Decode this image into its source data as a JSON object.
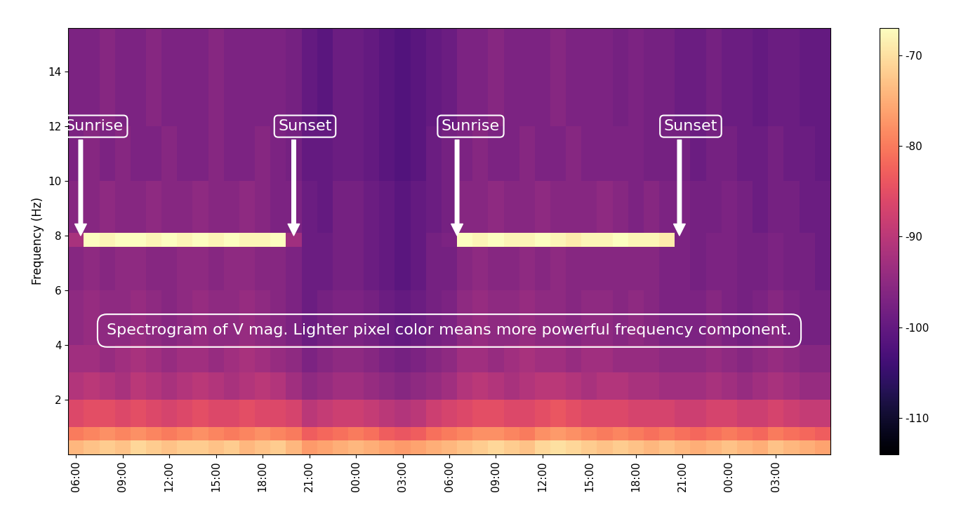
{
  "chart_data": {
    "type": "heatmap",
    "color": "magma",
    "y_label": "Frequency (Hz)",
    "xlim": [
      -0.5,
      48.5
    ],
    "ylim": [
      0,
      15.6
    ],
    "xticks": [
      {
        "value": 0,
        "label": "06:00"
      },
      {
        "value": 3,
        "label": "09:00"
      },
      {
        "value": 6,
        "label": "12:00"
      },
      {
        "value": 9,
        "label": "15:00"
      },
      {
        "value": 12,
        "label": "18:00"
      },
      {
        "value": 15,
        "label": "21:00"
      },
      {
        "value": 18,
        "label": "00:00"
      },
      {
        "value": 21,
        "label": "03:00"
      },
      {
        "value": 24,
        "label": "06:00"
      },
      {
        "value": 27,
        "label": "09:00"
      },
      {
        "value": 30,
        "label": "12:00"
      },
      {
        "value": 33,
        "label": "15:00"
      },
      {
        "value": 36,
        "label": "18:00"
      },
      {
        "value": 39,
        "label": "21:00"
      },
      {
        "value": 42,
        "label": "00:00"
      },
      {
        "value": 45,
        "label": "03:00"
      }
    ],
    "yticks": [
      2,
      4,
      6,
      8,
      10,
      12,
      14
    ],
    "x_edges": [
      -0.5,
      0.5,
      1.5,
      2.5,
      3.5,
      4.5,
      5.5,
      6.5,
      7.5,
      8.5,
      9.5,
      10.5,
      11.5,
      12.5,
      13.5,
      14.5,
      15.5,
      16.5,
      17.5,
      18.5,
      19.5,
      20.5,
      21.5,
      22.5,
      23.5,
      24.5,
      25.5,
      26.5,
      27.5,
      28.5,
      29.5,
      30.5,
      31.5,
      32.5,
      33.5,
      34.5,
      35.5,
      36.5,
      37.5,
      38.5,
      39.5,
      40.5,
      41.5,
      42.5,
      43.5,
      44.5,
      45.5,
      46.5,
      47.5,
      48.5
    ],
    "y_edges": [
      0,
      0.5,
      1,
      2,
      3,
      4,
      6,
      7.6,
      8.1,
      10,
      12,
      15.6
    ],
    "cells": [
      [
        -74,
        -73,
        -72,
        -73,
        -71,
        -72,
        -73,
        -72,
        -72,
        -73,
        -72,
        -74,
        -73,
        -72,
        -74,
        -77,
        -76,
        -75,
        -74,
        -75,
        -76,
        -77,
        -76,
        -75,
        -74,
        -73,
        -72,
        -71,
        -72,
        -73,
        -71,
        -70,
        -71,
        -72,
        -73,
        -72,
        -73,
        -74,
        -73,
        -74,
        -75,
        -74,
        -73,
        -74,
        -75,
        -73,
        -74,
        -75,
        -76
      ],
      [
        -80,
        -79,
        -78,
        -79,
        -78,
        -79,
        -80,
        -79,
        -78,
        -79,
        -80,
        -79,
        -78,
        -79,
        -80,
        -83,
        -82,
        -81,
        -80,
        -81,
        -83,
        -84,
        -83,
        -81,
        -80,
        -79,
        -78,
        -78,
        -79,
        -80,
        -78,
        -77,
        -78,
        -79,
        -80,
        -79,
        -80,
        -81,
        -80,
        -81,
        -82,
        -81,
        -80,
        -81,
        -82,
        -80,
        -81,
        -82,
        -83
      ],
      [
        -86,
        -85,
        -85,
        -86,
        -85,
        -86,
        -87,
        -86,
        -85,
        -86,
        -86,
        -85,
        -86,
        -86,
        -87,
        -90,
        -89,
        -88,
        -88,
        -89,
        -90,
        -91,
        -90,
        -88,
        -87,
        -86,
        -85,
        -85,
        -86,
        -86,
        -85,
        -84,
        -85,
        -86,
        -86,
        -86,
        -87,
        -87,
        -87,
        -88,
        -88,
        -87,
        -87,
        -88,
        -88,
        -87,
        -88,
        -89,
        -89
      ],
      [
        -91,
        -90,
        -91,
        -92,
        -90,
        -91,
        -92,
        -91,
        -90,
        -91,
        -92,
        -91,
        -90,
        -91,
        -93,
        -95,
        -94,
        -93,
        -93,
        -94,
        -95,
        -96,
        -95,
        -94,
        -93,
        -91,
        -90,
        -91,
        -92,
        -91,
        -90,
        -90,
        -91,
        -92,
        -91,
        -91,
        -92,
        -92,
        -93,
        -93,
        -93,
        -92,
        -93,
        -94,
        -93,
        -92,
        -93,
        -94,
        -94
      ],
      [
        -93,
        -93,
        -94,
        -93,
        -92,
        -93,
        -94,
        -93,
        -93,
        -94,
        -93,
        -92,
        -93,
        -94,
        -95,
        -97,
        -96,
        -95,
        -95,
        -96,
        -97,
        -98,
        -97,
        -96,
        -95,
        -93,
        -93,
        -94,
        -93,
        -92,
        -93,
        -93,
        -94,
        -93,
        -93,
        -94,
        -94,
        -94,
        -95,
        -95,
        -95,
        -94,
        -95,
        -96,
        -95,
        -94,
        -95,
        -96,
        -96
      ],
      [
        -95,
        -94,
        -95,
        -95,
        -94,
        -95,
        -96,
        -95,
        -94,
        -95,
        -95,
        -94,
        -95,
        -96,
        -97,
        -99,
        -98,
        -97,
        -97,
        -98,
        -99,
        -100,
        -99,
        -98,
        -97,
        -95,
        -94,
        -95,
        -95,
        -94,
        -95,
        -95,
        -96,
        -95,
        -95,
        -96,
        -95,
        -96,
        -97,
        -97,
        -97,
        -96,
        -97,
        -98,
        -97,
        -96,
        -97,
        -98,
        -98
      ],
      [
        -96,
        -95,
        -96,
        -95,
        -95,
        -96,
        -96,
        -95,
        -95,
        -96,
        -95,
        -95,
        -96,
        -96,
        -97,
        -99,
        -99,
        -98,
        -98,
        -99,
        -100,
        -101,
        -100,
        -98,
        -98,
        -96,
        -95,
        -96,
        -96,
        -95,
        -96,
        -95,
        -96,
        -96,
        -96,
        -96,
        -96,
        -96,
        -97,
        -97,
        -98,
        -97,
        -97,
        -98,
        -98,
        -97,
        -98,
        -98,
        -99
      ],
      [
        -92,
        -67,
        -68,
        -66,
        -67,
        -68,
        -67,
        -68,
        -67,
        -68,
        -67,
        -68,
        -68,
        -67,
        -93,
        -99,
        -99,
        -98,
        -98,
        -99,
        -100,
        -101,
        -100,
        -98,
        -97,
        -67,
        -68,
        -67,
        -68,
        -68,
        -67,
        -68,
        -69,
        -68,
        -68,
        -67,
        -68,
        -68,
        -69,
        -97,
        -98,
        -97,
        -97,
        -98,
        -98,
        -97,
        -98,
        -98,
        -99
      ],
      [
        -96,
        -96,
        -95,
        -96,
        -96,
        -95,
        -96,
        -96,
        -95,
        -96,
        -96,
        -95,
        -96,
        -97,
        -97,
        -99,
        -100,
        -98,
        -98,
        -99,
        -100,
        -101,
        -100,
        -99,
        -98,
        -96,
        -96,
        -95,
        -96,
        -96,
        -95,
        -96,
        -96,
        -96,
        -95,
        -96,
        -97,
        -96,
        -97,
        -97,
        -98,
        -98,
        -97,
        -98,
        -99,
        -98,
        -98,
        -99,
        -99
      ],
      [
        -97,
        -96,
        -97,
        -96,
        -97,
        -97,
        -96,
        -97,
        -97,
        -96,
        -97,
        -97,
        -96,
        -97,
        -98,
        -100,
        -100,
        -99,
        -99,
        -100,
        -101,
        -102,
        -101,
        -99,
        -98,
        -97,
        -96,
        -97,
        -97,
        -96,
        -97,
        -97,
        -96,
        -97,
        -97,
        -97,
        -97,
        -98,
        -98,
        -98,
        -99,
        -98,
        -98,
        -99,
        -99,
        -98,
        -99,
        -99,
        -100
      ],
      [
        -97,
        -97,
        -96,
        -97,
        -97,
        -96,
        -97,
        -97,
        -97,
        -96,
        -97,
        -97,
        -97,
        -97,
        -98,
        -100,
        -101,
        -99,
        -99,
        -100,
        -101,
        -102,
        -101,
        -100,
        -99,
        -97,
        -97,
        -96,
        -97,
        -97,
        -97,
        -96,
        -97,
        -97,
        -97,
        -98,
        -97,
        -98,
        -98,
        -99,
        -99,
        -98,
        -99,
        -99,
        -100,
        -99,
        -99,
        -100,
        -100
      ]
    ],
    "colorbar_range": [
      -114,
      -67
    ],
    "colorbar_ticks": [
      -110,
      -100,
      -90,
      -80,
      -70
    ],
    "annotations": [
      {
        "text": "Sunrise",
        "x": 0.3,
        "y": 8
      },
      {
        "text": "Sunset",
        "x": 14,
        "y": 8
      },
      {
        "text": "Sunrise",
        "x": 24.5,
        "y": 8
      },
      {
        "text": "Sunset",
        "x": 38.8,
        "y": 8
      }
    ],
    "note": "Spectrogram of V mag. Lighter pixel color means more powerful frequency component."
  }
}
